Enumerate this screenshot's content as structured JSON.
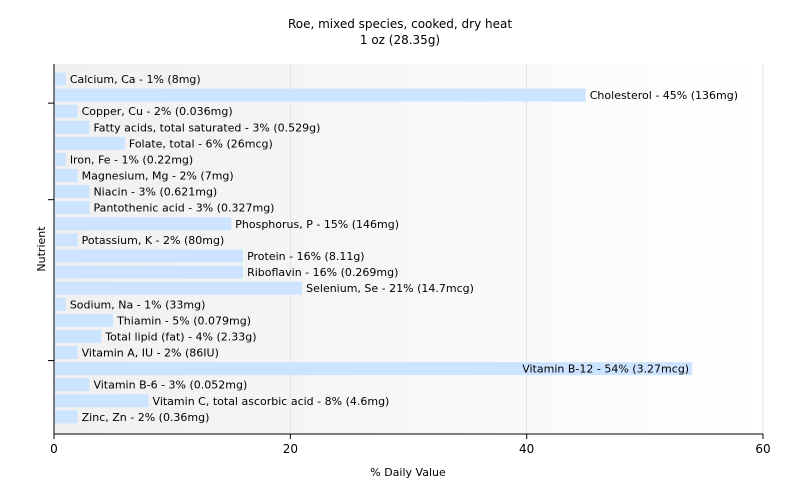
{
  "chart_data": {
    "type": "bar",
    "orientation": "horizontal",
    "title": "Roe, mixed species, cooked, dry heat",
    "subtitle": "1 oz (28.35g)",
    "xlabel": "% Daily Value",
    "ylabel": "Nutrient",
    "xlim": [
      0,
      60
    ],
    "xticks": [
      0,
      20,
      40,
      60
    ],
    "grid": true,
    "bar_color": "#cce4ff",
    "categories": [
      "Calcium, Ca",
      "Cholesterol",
      "Copper, Cu",
      "Fatty acids, total saturated",
      "Folate, total",
      "Iron, Fe",
      "Magnesium, Mg",
      "Niacin",
      "Pantothenic acid",
      "Phosphorus, P",
      "Potassium, K",
      "Protein",
      "Riboflavin",
      "Selenium, Se",
      "Sodium, Na",
      "Thiamin",
      "Total lipid (fat)",
      "Vitamin A, IU",
      "Vitamin B-12",
      "Vitamin B-6",
      "Vitamin C, total ascorbic acid",
      "Zinc, Zn"
    ],
    "values": [
      1,
      45,
      2,
      3,
      6,
      1,
      2,
      3,
      3,
      15,
      2,
      16,
      16,
      21,
      1,
      5,
      4,
      2,
      54,
      3,
      8,
      2
    ],
    "labels": [
      "Calcium, Ca - 1% (8mg)",
      "Cholesterol - 45% (136mg)",
      "Copper, Cu - 2% (0.036mg)",
      "Fatty acids, total saturated - 3% (0.529g)",
      "Folate, total - 6% (26mcg)",
      "Iron, Fe - 1% (0.22mg)",
      "Magnesium, Mg - 2% (7mg)",
      "Niacin - 3% (0.621mg)",
      "Pantothenic acid - 3% (0.327mg)",
      "Phosphorus, P - 15% (146mg)",
      "Potassium, K - 2% (80mg)",
      "Protein - 16% (8.11g)",
      "Riboflavin - 16% (0.269mg)",
      "Selenium, Se - 21% (14.7mcg)",
      "Sodium, Na - 1% (33mg)",
      "Thiamin - 5% (0.079mg)",
      "Total lipid (fat) - 4% (2.33g)",
      "Vitamin A, IU - 2% (86IU)",
      "Vitamin B-12 - 54% (3.27mcg)",
      "Vitamin B-6 - 3% (0.052mg)",
      "Vitamin C, total ascorbic acid - 8% (4.6mg)",
      "Zinc, Zn - 2% (0.36mg)"
    ]
  }
}
